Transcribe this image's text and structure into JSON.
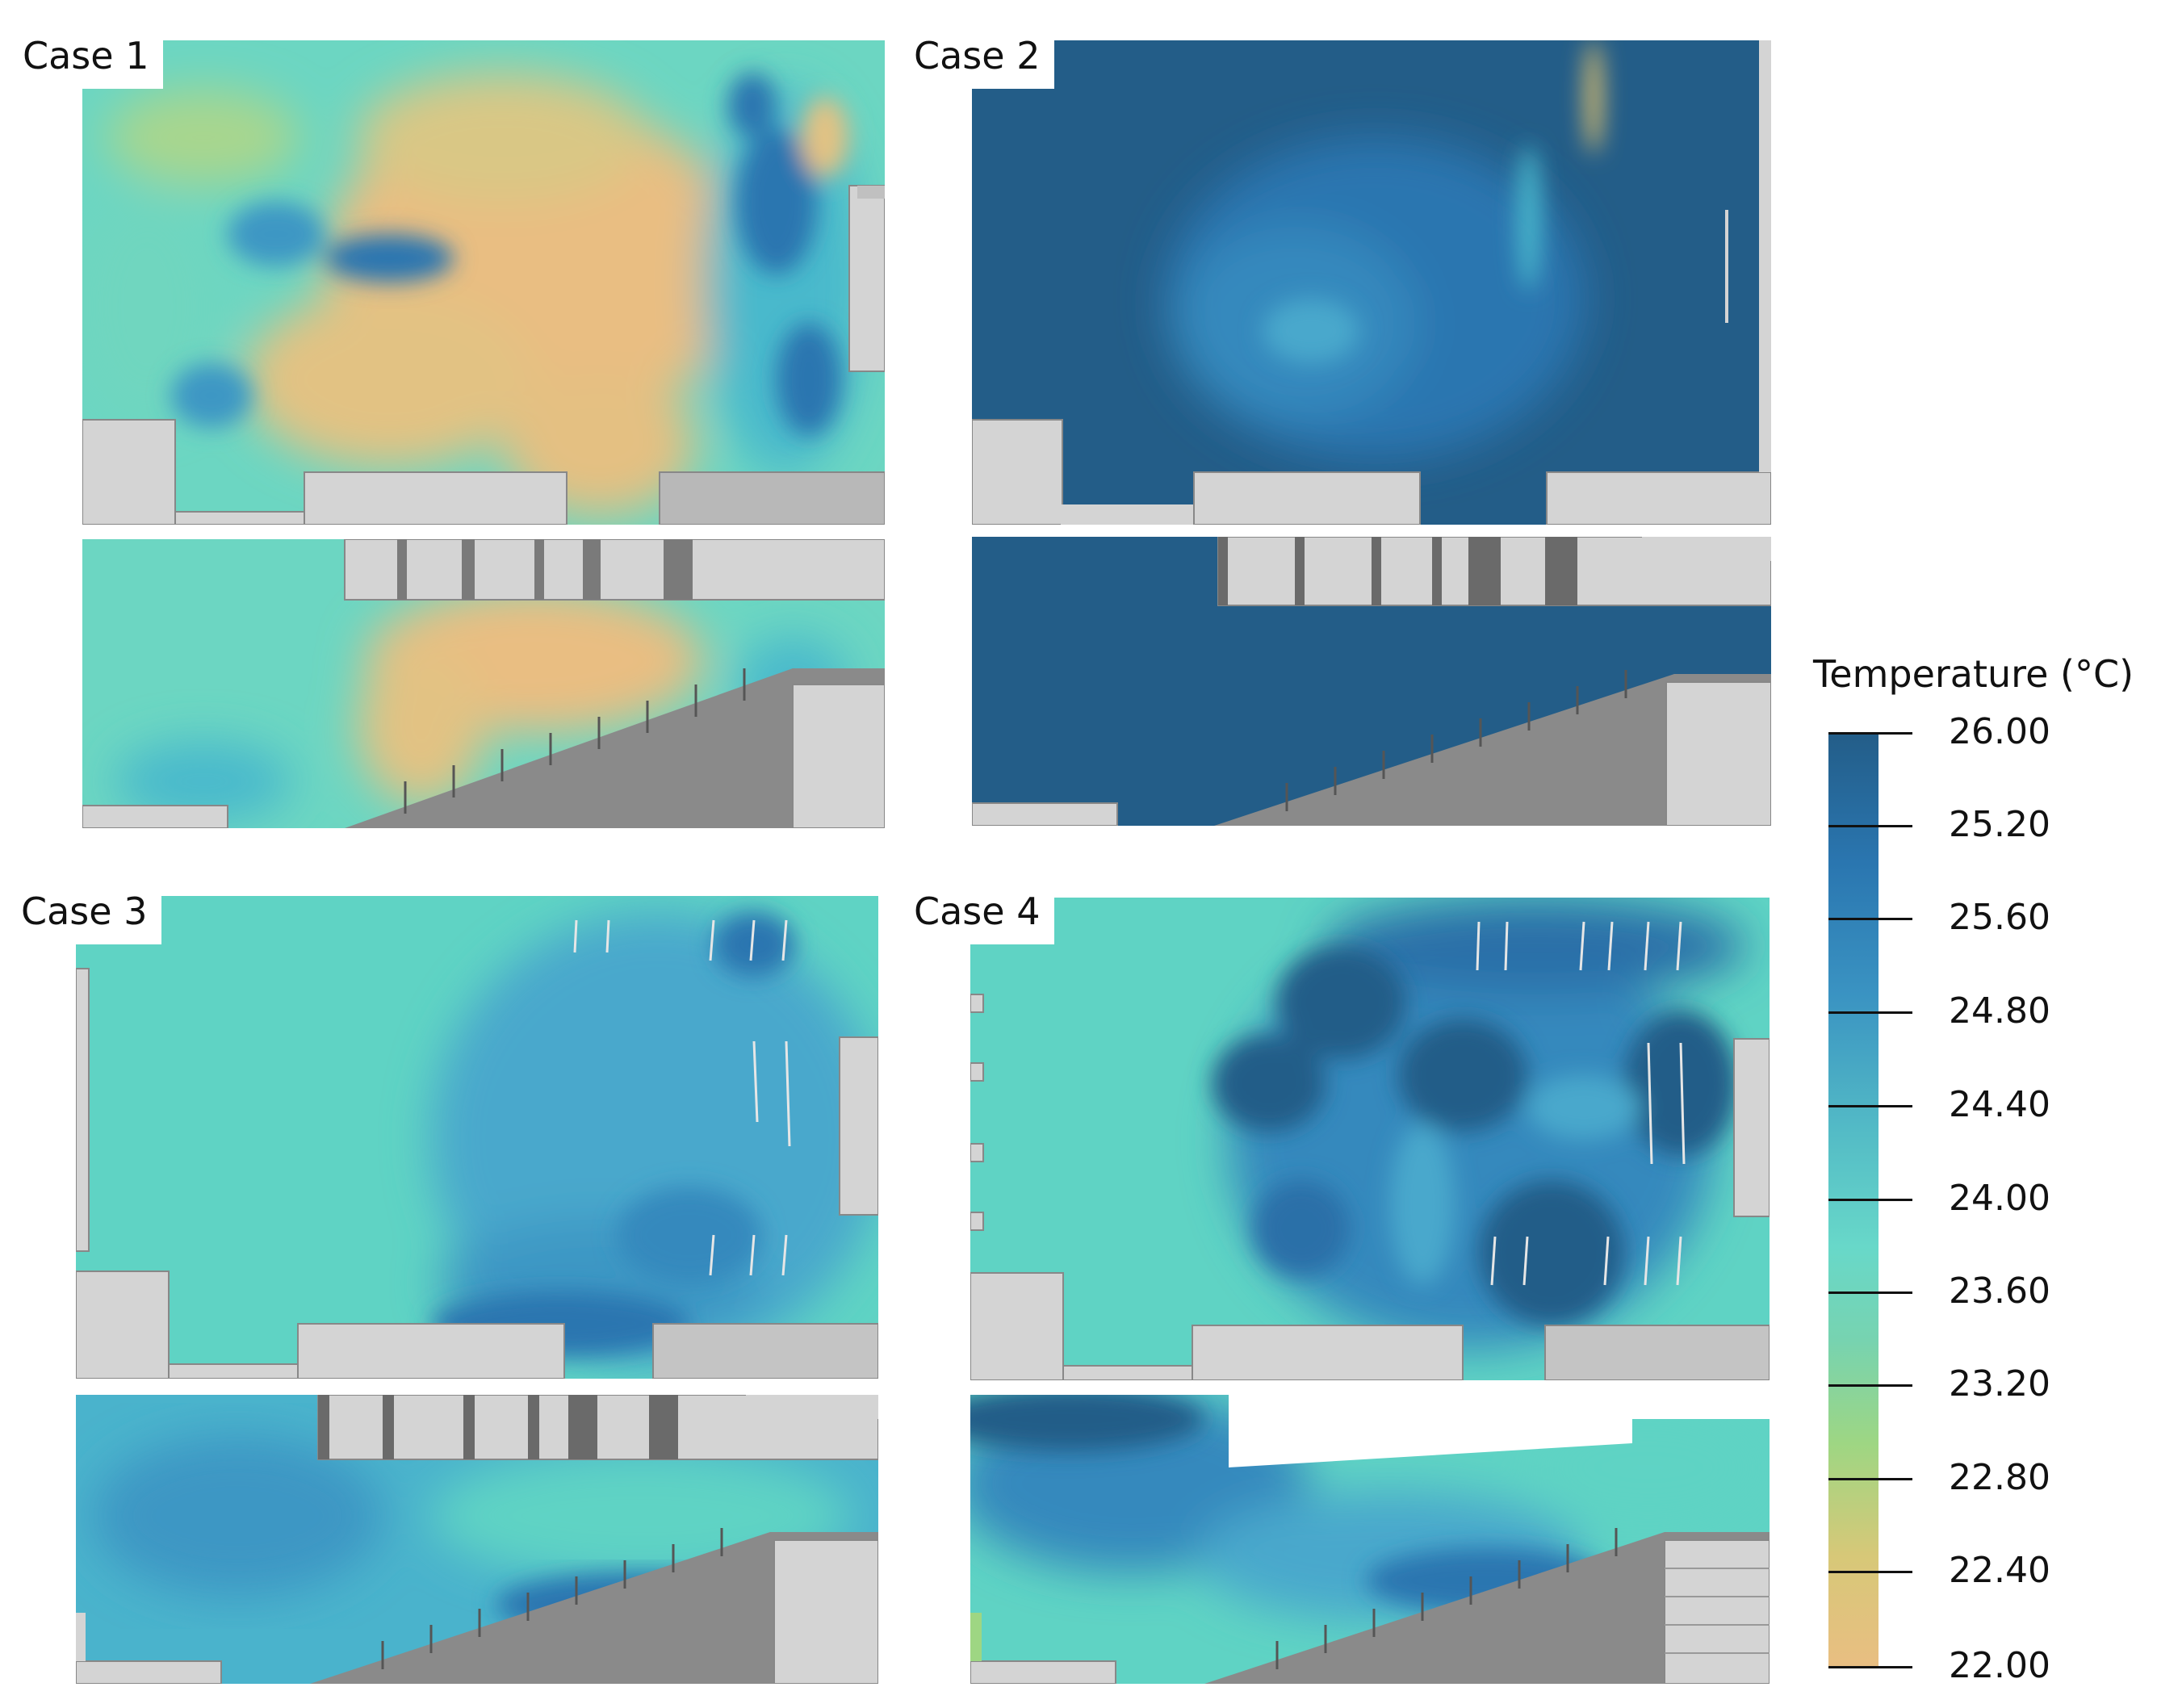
{
  "cases": [
    {
      "id": "case1",
      "label": "Case 1"
    },
    {
      "id": "case2",
      "label": "Case 2"
    },
    {
      "id": "case3",
      "label": "Case 3"
    },
    {
      "id": "case4",
      "label": "Case 4"
    }
  ],
  "legend": {
    "title": "Temperature (°C)",
    "ticks": [
      "26.00",
      "25.20",
      "25.60",
      "24.80",
      "24.40",
      "24.00",
      "23.60",
      "23.20",
      "22.80",
      "22.40",
      "22.00"
    ]
  },
  "colors": {
    "dark_blue": "#235d88",
    "mid_blue": "#2a76b0",
    "cyan": "#5fd3c4",
    "yellow_green": "#9ed683",
    "orange": "#e9be82",
    "obstacle_light": "#d4d4d4",
    "obstacle_dark": "#7a7a7a"
  }
}
